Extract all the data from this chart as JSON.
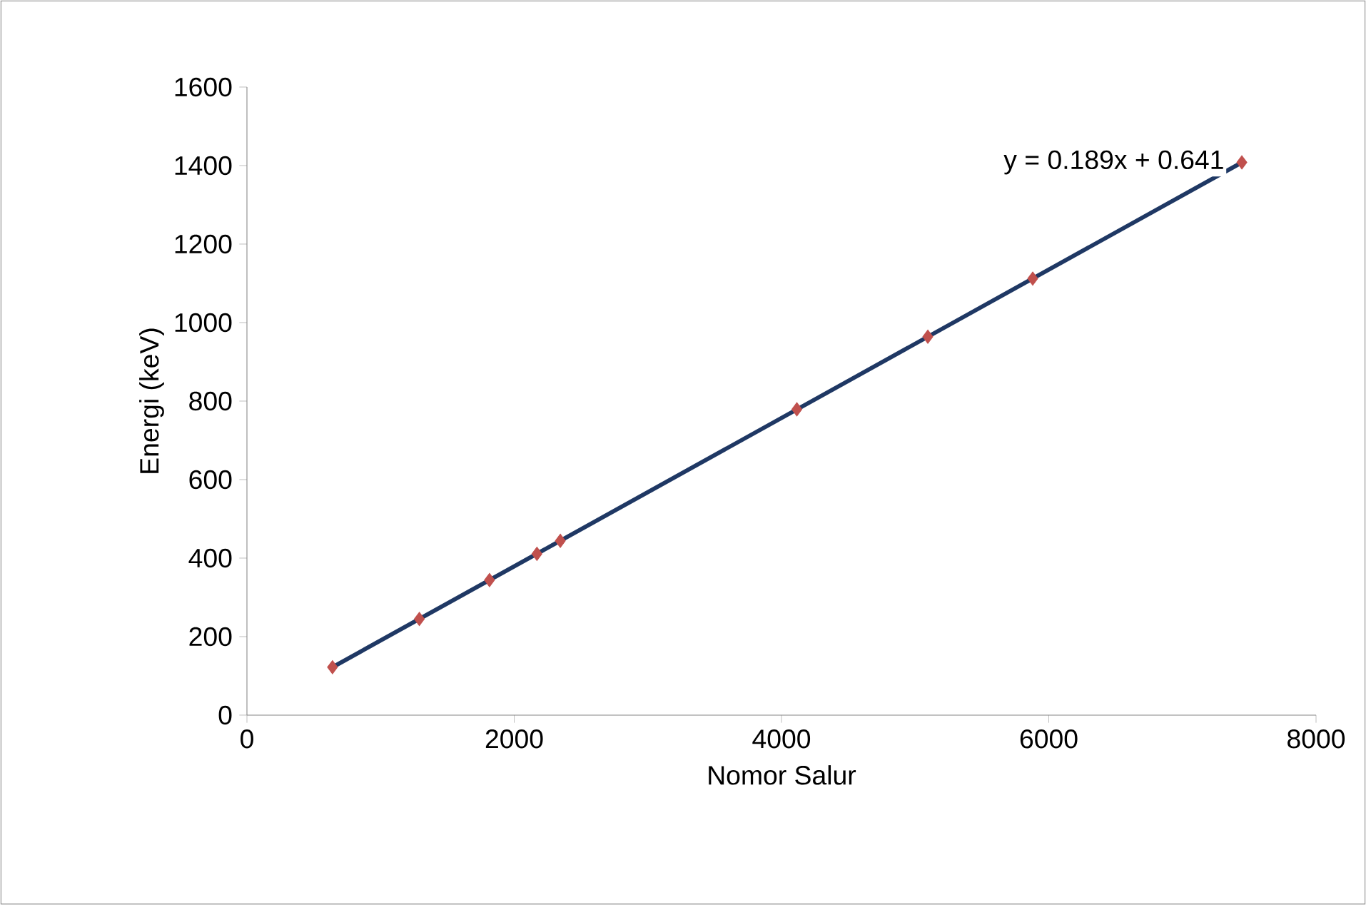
{
  "chart_data": {
    "type": "scatter",
    "xlabel": "Nomor Salur",
    "ylabel": "Energi (keV)",
    "xlim": [
      0,
      8000
    ],
    "ylim": [
      0,
      1600
    ],
    "xticks": [
      0,
      2000,
      4000,
      6000,
      8000
    ],
    "yticks": [
      0,
      200,
      400,
      600,
      800,
      1000,
      1200,
      1400,
      1600
    ],
    "grid": false,
    "series": [
      {
        "color": "#c0504d",
        "marker": "diamond",
        "x": [
          640,
          1290,
          1815,
          2170,
          2345,
          4115,
          5095,
          5880,
          7445
        ],
        "values": [
          122,
          245,
          344,
          411,
          444,
          779,
          964,
          1112,
          1408
        ]
      },
      {
        "type": "line",
        "color": "#1f3864",
        "marker": "none",
        "line_style": "solid",
        "x": [
          640,
          7445
        ],
        "values": [
          122,
          1408
        ]
      }
    ],
    "annotations": [
      {
        "text": "y = 0.189x + 0.641",
        "x": 7445,
        "y": 1408
      }
    ]
  }
}
